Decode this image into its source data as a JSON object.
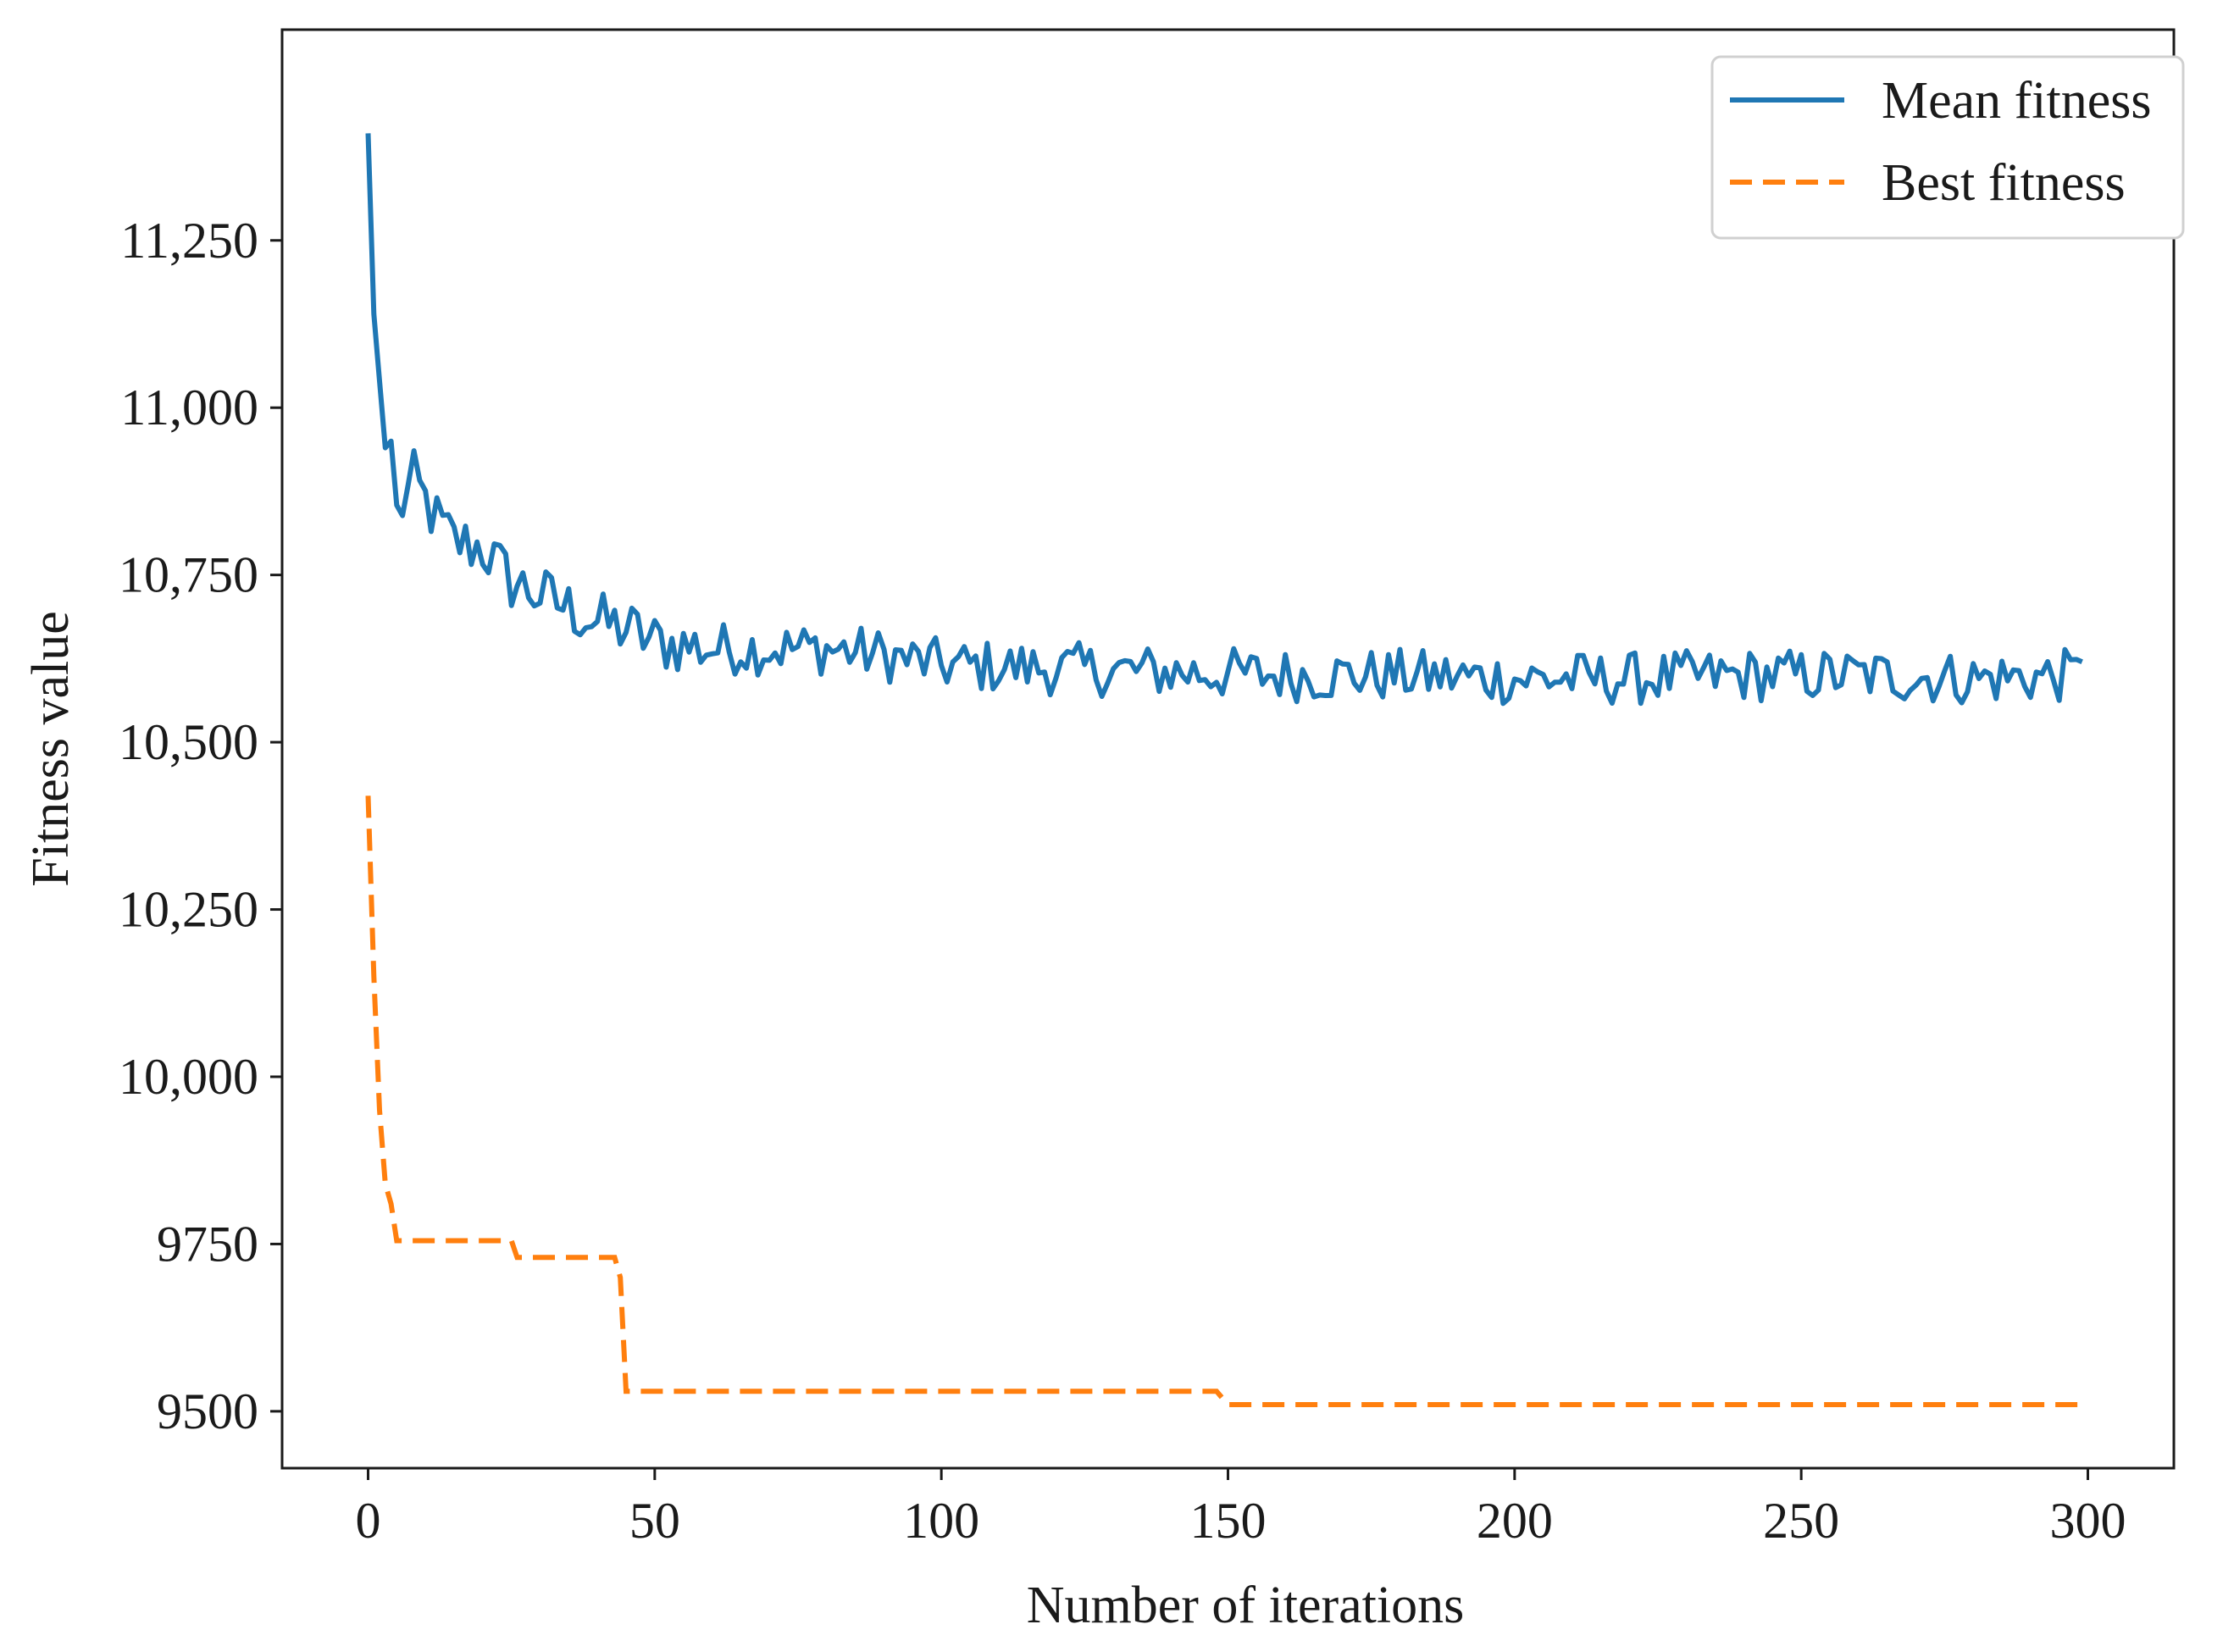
{
  "chart_data": {
    "type": "line",
    "title": "",
    "xlabel": "Number of iterations",
    "ylabel": "Fitness value",
    "xlim": [
      -15,
      315
    ],
    "ylim": [
      9415,
      11565
    ],
    "xticks": [
      0,
      50,
      100,
      150,
      200,
      250,
      300
    ],
    "xtick_labels": [
      "0",
      "50",
      "100",
      "150",
      "200",
      "250",
      "300"
    ],
    "yticks": [
      9500,
      9750,
      10000,
      10250,
      10500,
      10750,
      11000,
      11250
    ],
    "ytick_labels": [
      "9500",
      "9750",
      "10,000",
      "10,250",
      "10,500",
      "10,750",
      "11,000",
      "11,250"
    ],
    "grid": false,
    "legend_position": "top-right",
    "series": [
      {
        "name": "Mean fitness",
        "style": "solid",
        "color": "#1f77b4",
        "keypoints": [
          [
            0,
            11410
          ],
          [
            1,
            11140
          ],
          [
            2,
            11040
          ],
          [
            3,
            10940
          ],
          [
            4,
            10950
          ],
          [
            5,
            10840
          ],
          [
            8,
            10890
          ],
          [
            12,
            10830
          ],
          [
            15,
            10800
          ],
          [
            20,
            10790
          ],
          [
            25,
            10740
          ],
          [
            30,
            10720
          ],
          [
            35,
            10700
          ],
          [
            40,
            10680
          ],
          [
            45,
            10670
          ],
          [
            50,
            10650
          ],
          [
            60,
            10640
          ],
          [
            70,
            10640
          ],
          [
            80,
            10640
          ],
          [
            90,
            10630
          ],
          [
            100,
            10615
          ],
          [
            120,
            10610
          ],
          [
            140,
            10605
          ],
          [
            160,
            10600
          ],
          [
            180,
            10600
          ],
          [
            200,
            10595
          ],
          [
            220,
            10595
          ],
          [
            240,
            10600
          ],
          [
            260,
            10600
          ],
          [
            280,
            10595
          ],
          [
            299,
            10600
          ]
        ],
        "noise_amplitude": 40,
        "last_value": 10620
      },
      {
        "name": "Best fitness",
        "style": "dashed",
        "color": "#ff7f0e",
        "x": [
          0,
          1,
          2,
          3,
          4,
          5,
          25,
          26,
          43,
          44,
          45,
          148,
          149,
          150,
          299
        ],
        "y": [
          10420,
          10150,
          9950,
          9840,
          9810,
          9755,
          9755,
          9730,
          9730,
          9700,
          9530,
          9530,
          9520,
          9510,
          9510
        ]
      }
    ]
  }
}
